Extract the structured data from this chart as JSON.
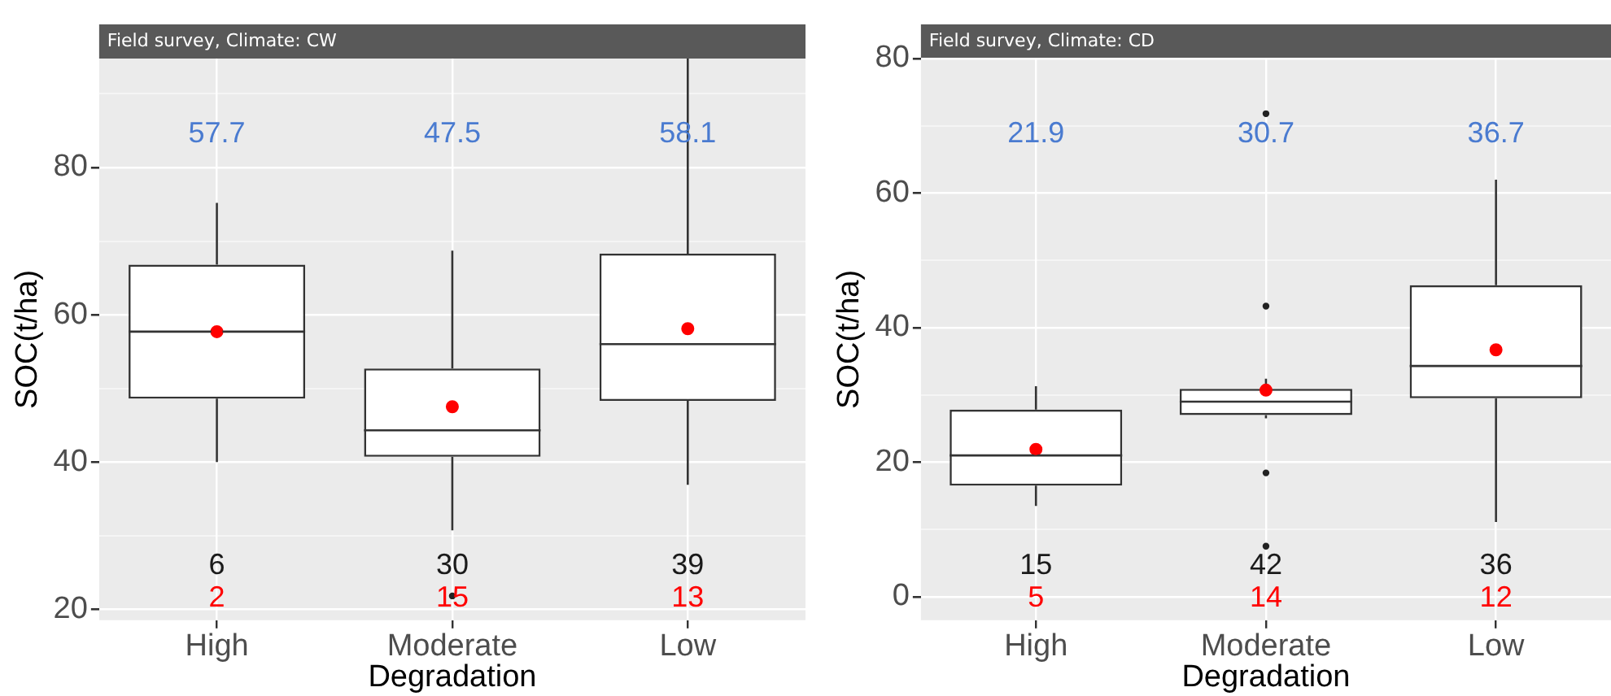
{
  "chart_data": [
    {
      "type": "box",
      "title": "Field survey, Climate: CW",
      "xlabel": "Degradation",
      "ylabel": "SOC(t/ha)",
      "categories": [
        "High",
        "Moderate",
        "Low"
      ],
      "boxes": [
        {
          "low": 40,
          "q1": 48.6,
          "median": 57.7,
          "q3": 66.8,
          "high": 75.2,
          "mean": 57.7
        },
        {
          "low": 30.7,
          "q1": 40.7,
          "median": 44.3,
          "q3": 52.7,
          "high": 68.7,
          "mean": 47.5,
          "outliers": [
            21.8
          ]
        },
        {
          "low": 36.9,
          "q1": 48.3,
          "median": 56,
          "q3": 68.3,
          "high": 94.8,
          "mean": 58.1
        }
      ],
      "ylim": [
        18.5,
        94.8
      ],
      "yticks": [
        20,
        {
          "value": 30,
          "label": null
        },
        40,
        {
          "value": 50,
          "label": null
        },
        60,
        {
          "value": 70,
          "label": null
        },
        80,
        {
          "value": 90,
          "label": null
        }
      ],
      "grid": true,
      "annotations": [
        "57.7",
        "47.5",
        "58.1",
        "6",
        "30",
        "39",
        "2",
        "15",
        "13"
      ]
    },
    {
      "type": "box",
      "title": "Field survey, Climate: CD",
      "xlabel": "Degradation",
      "ylabel": "SOC(t/ha)",
      "categories": [
        "High",
        "Moderate",
        "Low"
      ],
      "boxes": [
        {
          "low": 13.5,
          "q1": 16.5,
          "median": 21,
          "q3": 27.8,
          "high": 31.3,
          "mean": 21.9
        },
        {
          "low": 26.5,
          "q1": 27,
          "median": 29,
          "q3": 30.9,
          "high": 32.4,
          "mean": 30.7,
          "outliers": [
            71.8,
            43.2,
            18.4,
            7.5
          ]
        },
        {
          "low": 11.1,
          "q1": 29.5,
          "median": 34.3,
          "q3": 46.3,
          "high": 62,
          "mean": 36.7
        }
      ],
      "ylim": [
        -3.5,
        80
      ],
      "yticks": [
        0,
        {
          "value": 10,
          "label": null
        },
        20,
        {
          "value": 30,
          "label": null
        },
        40,
        {
          "value": 50,
          "label": null
        },
        60,
        {
          "value": 70,
          "label": null
        },
        80
      ],
      "grid": true,
      "annotations": [
        "21.9",
        "30.7",
        "36.7",
        "15",
        "42",
        "36",
        "5",
        "14",
        "12"
      ]
    }
  ]
}
